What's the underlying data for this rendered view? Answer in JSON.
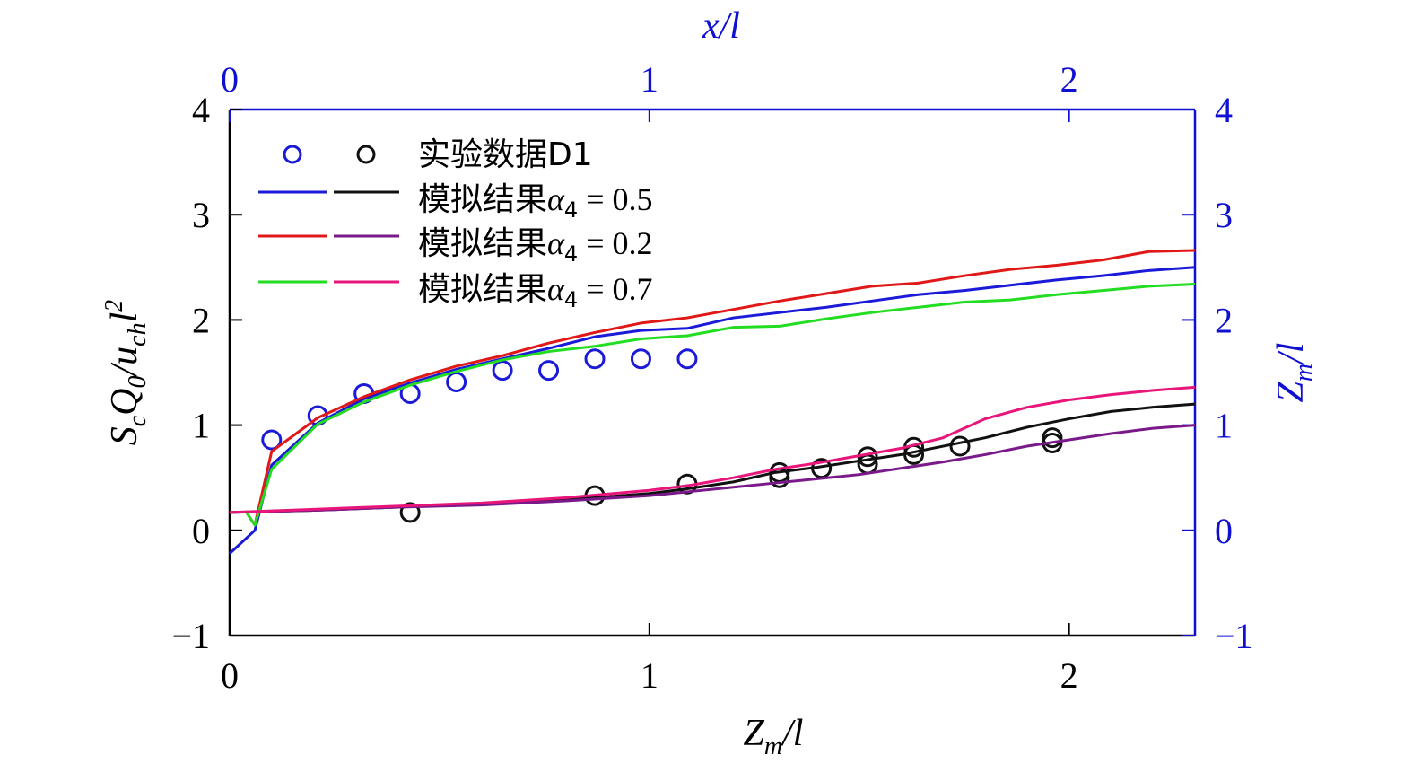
{
  "chart_data": {
    "type": "line",
    "axes": {
      "bottom": {
        "label_main": "Z",
        "label_sub": "m",
        "label_tail": "/l",
        "lim": [
          0,
          2.3
        ],
        "ticks": [
          "0",
          "1",
          "2"
        ]
      },
      "top": {
        "label": "x/l",
        "lim": [
          0,
          2.3
        ],
        "ticks": [
          "0",
          "1",
          "2"
        ],
        "color": "#1010d0"
      },
      "left": {
        "label_parts": [
          {
            "t": "S",
            "sub": false
          },
          {
            "t": "c",
            "sub": true
          },
          {
            "t": "Q",
            "sub": false
          },
          {
            "t": "0",
            "sub": true
          },
          {
            "t": "/u",
            "sub": false
          },
          {
            "t": "ch",
            "sub": true
          },
          {
            "t": "l",
            "sub": false
          },
          {
            "t": "2",
            "sup": true
          }
        ],
        "lim": [
          -1,
          4
        ],
        "ticks": [
          "−1",
          "0",
          "1",
          "2",
          "3",
          "4"
        ]
      },
      "right": {
        "label_main": "Z",
        "label_sub": "m",
        "label_tail": "/l",
        "lim": [
          -1,
          4
        ],
        "ticks": [
          "−1",
          "0",
          "1",
          "2",
          "3",
          "4"
        ],
        "color": "#1010d0"
      }
    },
    "legend": {
      "placement": "top-left",
      "entries": [
        {
          "text": "实验数据D1",
          "marker": "circle",
          "colors": [
            "#1a1ad8",
            "#111111"
          ]
        },
        {
          "text": "模拟结果",
          "alpha_sym": "α",
          "alpha_sub": "4",
          "alpha_val": " = 0.5",
          "marker": "line",
          "colors": [
            "#1a1ad8",
            "#111111"
          ]
        },
        {
          "text": "模拟结果",
          "alpha_sym": "α",
          "alpha_sub": "4",
          "alpha_val": " = 0.2",
          "marker": "line",
          "colors": [
            "#e01818",
            "#7a1a8a"
          ]
        },
        {
          "text": "模拟结果",
          "alpha_sym": "α",
          "alpha_sub": "4",
          "alpha_val": " = 0.7",
          "marker": "line",
          "colors": [
            "#22dd22",
            "#e8157a"
          ]
        }
      ]
    },
    "series": [
      {
        "name": "实验数据D1 (x/l)",
        "kind": "scatter",
        "color": "#1a1ad8",
        "axis": "top-left",
        "x": [
          0.1,
          0.21,
          0.32,
          0.43,
          0.54,
          0.65,
          0.76,
          0.87,
          0.98,
          1.09
        ],
        "y": [
          0.86,
          1.09,
          1.3,
          1.3,
          1.41,
          1.52,
          1.52,
          1.63,
          1.63,
          1.63
        ]
      },
      {
        "name": "实验数据D1 (Zm/l)",
        "kind": "scatter",
        "color": "#111111",
        "axis": "bottom-right",
        "x": [
          0.43,
          0.87,
          1.09,
          1.31,
          1.31,
          1.41,
          1.52,
          1.52,
          1.63,
          1.63,
          1.74,
          1.96,
          1.96
        ],
        "y": [
          0.17,
          0.33,
          0.44,
          0.5,
          0.55,
          0.59,
          0.63,
          0.7,
          0.72,
          0.79,
          0.8,
          0.83,
          0.88
        ]
      },
      {
        "name": "模拟结果α4 = 0.5 (x/l)",
        "kind": "line",
        "color": "#1a1ad8",
        "axis": "top-left",
        "x": [
          0,
          0.06,
          0.1,
          0.21,
          0.32,
          0.43,
          0.54,
          0.65,
          0.76,
          0.87,
          0.98,
          1.09,
          1.2,
          1.31,
          1.42,
          1.53,
          1.64,
          1.75,
          1.86,
          1.97,
          2.08,
          2.19,
          2.3
        ],
        "y": [
          -0.22,
          0.0,
          0.62,
          1.02,
          1.25,
          1.4,
          1.53,
          1.63,
          1.73,
          1.84,
          1.9,
          1.92,
          2.02,
          2.07,
          2.12,
          2.18,
          2.24,
          2.28,
          2.33,
          2.38,
          2.42,
          2.47,
          2.5
        ]
      },
      {
        "name": "模拟结果α4 = 0.2 (x/l)",
        "kind": "line",
        "color": "#e01818",
        "axis": "top-left",
        "x": [
          0.04,
          0.06,
          0.1,
          0.21,
          0.32,
          0.43,
          0.54,
          0.65,
          0.76,
          0.87,
          0.98,
          1.09,
          1.2,
          1.31,
          1.42,
          1.53,
          1.64,
          1.75,
          1.86,
          1.97,
          2.08,
          2.19,
          2.3
        ],
        "y": [
          0.17,
          0.05,
          0.75,
          1.07,
          1.27,
          1.43,
          1.56,
          1.66,
          1.78,
          1.88,
          1.97,
          2.02,
          2.1,
          2.18,
          2.25,
          2.32,
          2.35,
          2.42,
          2.48,
          2.52,
          2.57,
          2.65,
          2.66
        ]
      },
      {
        "name": "模拟结果α4 = 0.7 (x/l)",
        "kind": "line",
        "color": "#22dd22",
        "axis": "top-left",
        "x": [
          0.04,
          0.06,
          0.1,
          0.21,
          0.32,
          0.43,
          0.54,
          0.65,
          0.76,
          0.87,
          0.98,
          1.09,
          1.2,
          1.31,
          1.42,
          1.53,
          1.64,
          1.75,
          1.86,
          1.97,
          2.08,
          2.19,
          2.3
        ],
        "y": [
          0.17,
          0.05,
          0.58,
          1.01,
          1.22,
          1.38,
          1.51,
          1.62,
          1.7,
          1.75,
          1.82,
          1.85,
          1.93,
          1.94,
          2.01,
          2.07,
          2.12,
          2.17,
          2.19,
          2.24,
          2.28,
          2.32,
          2.34
        ]
      },
      {
        "name": "模拟结果α4 = 0.5 (Zm/l)",
        "kind": "line",
        "color": "#111111",
        "axis": "bottom-right",
        "x": [
          0,
          0.2,
          0.4,
          0.6,
          0.8,
          1.0,
          1.1,
          1.2,
          1.3,
          1.4,
          1.5,
          1.6,
          1.7,
          1.8,
          1.9,
          2.0,
          2.1,
          2.2,
          2.3
        ],
        "y": [
          0.17,
          0.19,
          0.22,
          0.25,
          0.29,
          0.35,
          0.4,
          0.46,
          0.55,
          0.6,
          0.66,
          0.72,
          0.8,
          0.88,
          0.98,
          1.06,
          1.13,
          1.17,
          1.2
        ]
      },
      {
        "name": "模拟结果α4 = 0.2 (Zm/l)",
        "kind": "line",
        "color": "#7a1a8a",
        "axis": "bottom-right",
        "x": [
          0,
          0.2,
          0.4,
          0.6,
          0.8,
          1.0,
          1.1,
          1.2,
          1.3,
          1.4,
          1.5,
          1.6,
          1.7,
          1.8,
          1.9,
          2.0,
          2.1,
          2.2,
          2.3
        ],
        "y": [
          0.17,
          0.19,
          0.22,
          0.24,
          0.28,
          0.33,
          0.37,
          0.41,
          0.45,
          0.49,
          0.53,
          0.59,
          0.65,
          0.72,
          0.8,
          0.86,
          0.92,
          0.97,
          1.0
        ]
      },
      {
        "name": "模拟结果α4 = 0.7 (Zm/l)",
        "kind": "line",
        "color": "#e8157a",
        "axis": "bottom-right",
        "x": [
          0,
          0.2,
          0.4,
          0.6,
          0.8,
          1.0,
          1.1,
          1.2,
          1.3,
          1.4,
          1.5,
          1.6,
          1.7,
          1.8,
          1.9,
          2.0,
          2.1,
          2.2,
          2.3
        ],
        "y": [
          0.17,
          0.2,
          0.23,
          0.26,
          0.31,
          0.38,
          0.43,
          0.5,
          0.58,
          0.64,
          0.71,
          0.78,
          0.88,
          1.06,
          1.17,
          1.24,
          1.29,
          1.33,
          1.36
        ]
      }
    ]
  }
}
